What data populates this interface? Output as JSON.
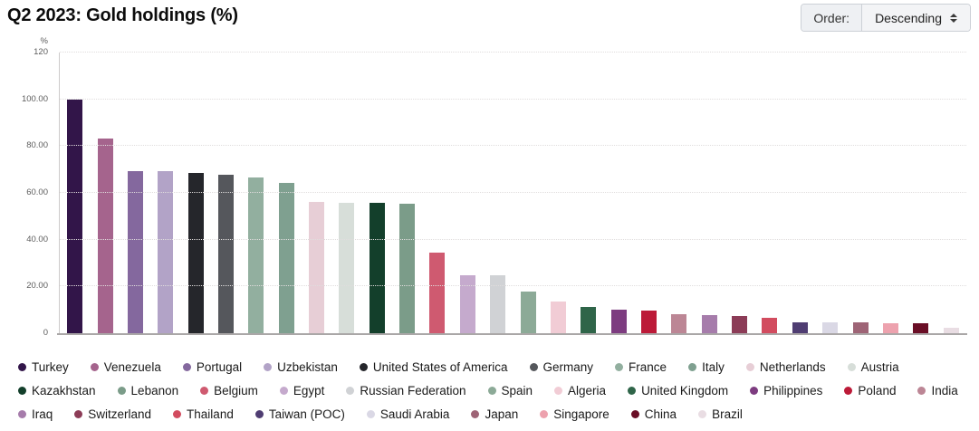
{
  "header": {
    "title": "Q2 2023: Gold holdings (%)",
    "order_label": "Order:",
    "order_value": "Descending"
  },
  "chart_data": {
    "type": "bar",
    "title": "Q2 2023: Gold holdings (%)",
    "xlabel": "",
    "ylabel": "%",
    "ylim": [
      0,
      120
    ],
    "grid": "horizontal-dotted",
    "legend_position": "bottom",
    "sort_order": "descending",
    "yticks": [
      {
        "value": 120,
        "label": "120"
      },
      {
        "value": 100,
        "label": "100.00"
      },
      {
        "value": 80,
        "label": "80.00"
      },
      {
        "value": 60,
        "label": "60.00"
      },
      {
        "value": 40,
        "label": "40.00"
      },
      {
        "value": 20,
        "label": "20.00"
      },
      {
        "value": 0,
        "label": "0"
      }
    ],
    "points": [
      {
        "label": "Turkey",
        "value": 100.0,
        "color": "#321549"
      },
      {
        "label": "Venezuela",
        "value": 83.3,
        "color": "#a5648d"
      },
      {
        "label": "Portugal",
        "value": 69.4,
        "color": "#84689e"
      },
      {
        "label": "Uzbekistan",
        "value": 69.2,
        "color": "#b2a3c7"
      },
      {
        "label": "United States of America",
        "value": 68.5,
        "color": "#25262b"
      },
      {
        "label": "Germany",
        "value": 67.6,
        "color": "#55575c"
      },
      {
        "label": "France",
        "value": 66.6,
        "color": "#92af9f"
      },
      {
        "label": "Italy",
        "value": 64.4,
        "color": "#7fa090"
      },
      {
        "label": "Netherlands",
        "value": 56.2,
        "color": "#e7ced6"
      },
      {
        "label": "Austria",
        "value": 55.9,
        "color": "#d7ded9"
      },
      {
        "label": "Kazakhstan",
        "value": 55.7,
        "color": "#133f2b"
      },
      {
        "label": "Lebanon",
        "value": 55.5,
        "color": "#7b9c89"
      },
      {
        "label": "Belgium",
        "value": 34.3,
        "color": "#cf5a70"
      },
      {
        "label": "Egypt",
        "value": 24.7,
        "color": "#c5aacd"
      },
      {
        "label": "Russian Federation",
        "value": 24.6,
        "color": "#d0d2d5"
      },
      {
        "label": "Spain",
        "value": 17.9,
        "color": "#8caa97"
      },
      {
        "label": "Algeria",
        "value": 13.6,
        "color": "#f1ccd5"
      },
      {
        "label": "United Kingdom",
        "value": 11.1,
        "color": "#2f6549"
      },
      {
        "label": "Philippines",
        "value": 10.1,
        "color": "#7d3c80"
      },
      {
        "label": "Poland",
        "value": 9.7,
        "color": "#bc1a38"
      },
      {
        "label": "India",
        "value": 8.1,
        "color": "#bc8695"
      },
      {
        "label": "Iraq",
        "value": 7.6,
        "color": "#a67cab"
      },
      {
        "label": "Switzerland",
        "value": 7.5,
        "color": "#8c3c57"
      },
      {
        "label": "Thailand",
        "value": 6.7,
        "color": "#d24c5f"
      },
      {
        "label": "Taiwan (POC)",
        "value": 4.8,
        "color": "#4f3d72"
      },
      {
        "label": "Saudi Arabia",
        "value": 4.7,
        "color": "#dad8e5"
      },
      {
        "label": "Japan",
        "value": 4.6,
        "color": "#9e6476"
      },
      {
        "label": "Singapore",
        "value": 4.3,
        "color": "#eda2ae"
      },
      {
        "label": "China",
        "value": 4.2,
        "color": "#6a0e26"
      },
      {
        "label": "Brazil",
        "value": 2.5,
        "color": "#e9dde3"
      }
    ]
  },
  "legend": {
    "rows": [
      [
        "Turkey",
        "Venezuela",
        "Portugal",
        "Uzbekistan",
        "United States of America",
        "Germany",
        "France",
        "Italy",
        "Netherlands",
        "Austria"
      ],
      [
        "Kazakhstan",
        "Lebanon",
        "Belgium",
        "Egypt",
        "Russian Federation",
        "Spain",
        "Algeria",
        "United Kingdom",
        "Philippines",
        "Poland",
        "India"
      ],
      [
        "Iraq",
        "Switzerland",
        "Thailand",
        "Taiwan (POC)",
        "Saudi Arabia",
        "Japan",
        "Singapore",
        "China",
        "Brazil"
      ]
    ]
  },
  "colors": {
    "grid_line": "#e0dddd",
    "axis_line": "#aaa7a7",
    "tick_text": "#5c5c5c",
    "legend_text": "#1a1a1a",
    "control_bg": "#eef0f3",
    "control_border": "#ccd0d6"
  }
}
